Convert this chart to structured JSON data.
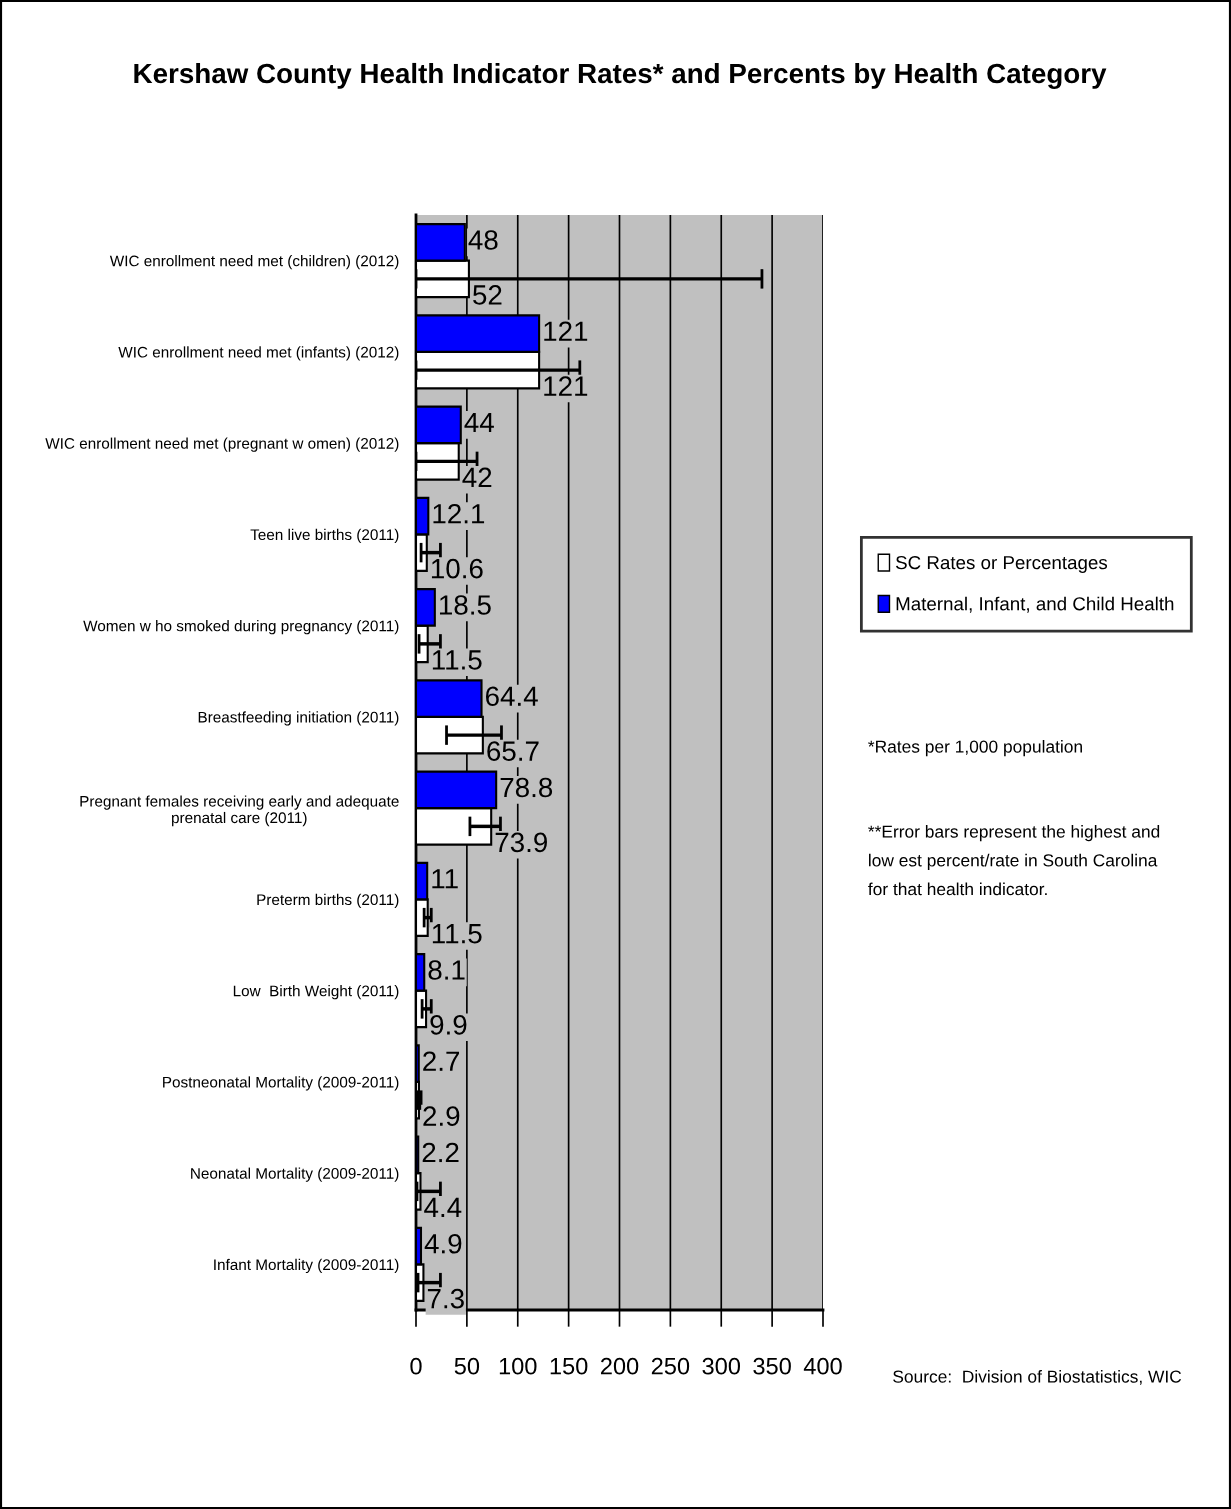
{
  "chart_data": {
    "type": "bar",
    "orientation": "horizontal",
    "title": "Kershaw County Health Indicator Rates* and Percents by Health Category",
    "categories": [
      "WIC enrollment need met (children) (2012)",
      "WIC enrollment need met (infants) (2012)",
      "WIC enrollment need met (pregnant w omen) (2012)",
      "Teen live births (2011)",
      "Women w ho smoked during pregnancy (2011)",
      "Breastfeeding initiation (2011)",
      "Pregnant females receiving early and adequate\nprenatal care (2011)",
      "Preterm births (2011)",
      "Low  Birth Weight (2011)",
      "Postneonatal Mortality (2009-2011)",
      "Neonatal Mortality (2009-2011)",
      "Infant Mortality (2009-2011)"
    ],
    "series": [
      {
        "name": "SC Rates or Percentages",
        "color": "#ffffff",
        "values": [
          52,
          121,
          42,
          10.6,
          11.5,
          65.7,
          73.9,
          11.5,
          9.9,
          2.9,
          4.4,
          7.3
        ],
        "errors": [
          [
            0,
            340
          ],
          [
            0,
            161
          ],
          [
            0,
            60
          ],
          [
            5,
            24
          ],
          [
            3,
            24
          ],
          [
            30,
            84
          ],
          [
            53,
            83
          ],
          [
            8,
            15
          ],
          [
            6,
            15
          ],
          [
            1,
            5
          ],
          [
            1,
            24
          ],
          [
            2,
            24
          ]
        ]
      },
      {
        "name": "Maternal, Infant, and Child Health",
        "color": "#0000ff",
        "values": [
          48,
          121,
          44,
          12.1,
          18.5,
          64.4,
          78.8,
          11,
          8.1,
          2.7,
          2.2,
          4.9
        ]
      }
    ],
    "xlim": [
      0,
      400
    ],
    "xticks": [
      0,
      50,
      100,
      150,
      200,
      250,
      300,
      350,
      400
    ],
    "grid": "x",
    "legend": "right",
    "data_labels": true,
    "annotations": [
      "*Rates per 1,000 population",
      "**Error bars represent the highest and\nlow est percent/rate in South Carolina\nfor that health indicator.",
      "Source:  Division of Biostatistics, WIC"
    ]
  }
}
